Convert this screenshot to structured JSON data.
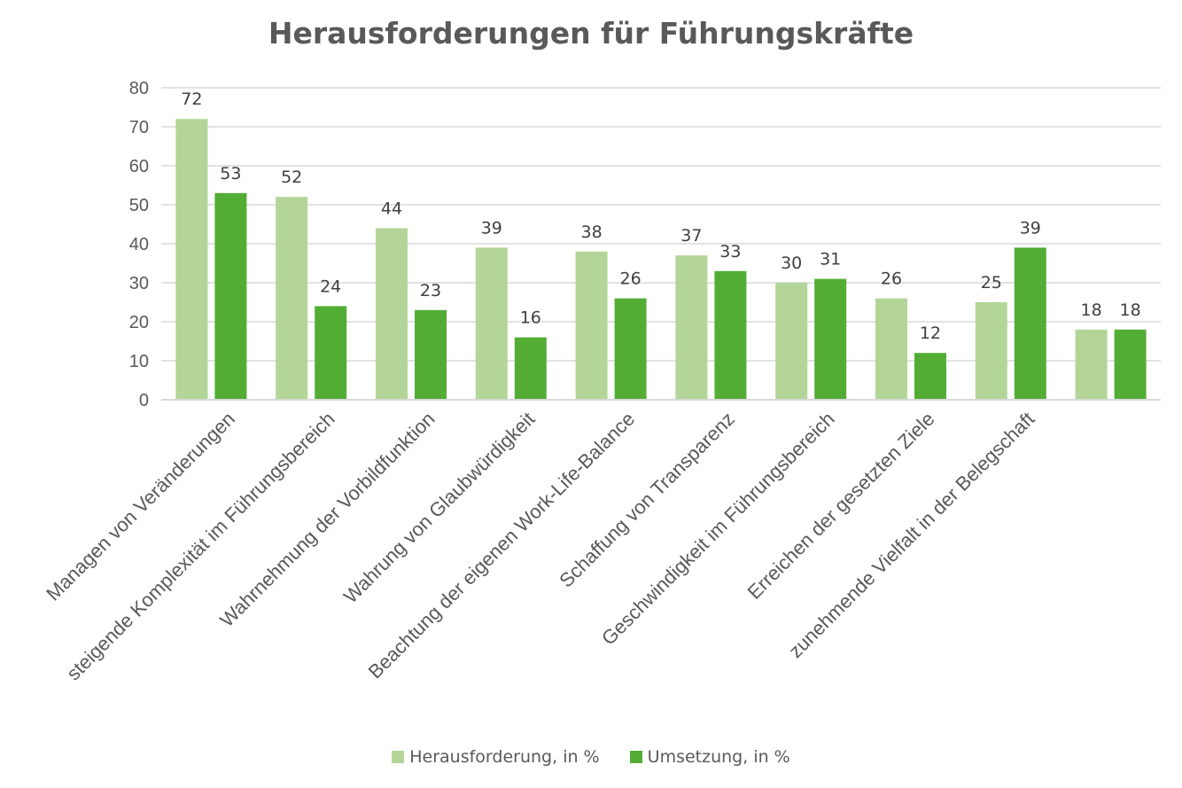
{
  "chart_data": {
    "type": "bar",
    "title": "Herausforderungen für Führungskräfte",
    "xlabel": "",
    "ylabel": "",
    "ylim": [
      0,
      80
    ],
    "yticks": [
      0,
      10,
      20,
      30,
      40,
      50,
      60,
      70,
      80
    ],
    "grid": true,
    "legend_position": "bottom",
    "categories": [
      "Managen von Veränderungen",
      "steigende Komplexität im Führungsbereich",
      "Wahrnehmung der Vorbildfunktion",
      "Wahrung von Glaubwürdigkeit",
      "Beachtung der eigenen Work-Life-Balance",
      "Schaffung von Transparenz",
      "Geschwindigkeit im Führungsbereich",
      "Erreichen der gesetzten Ziele",
      "zunehmende Vielfalt in der Belegschaft",
      ""
    ],
    "series": [
      {
        "name": "Herausforderung, in %",
        "color": "#b3d698",
        "values": [
          72,
          52,
          44,
          39,
          38,
          37,
          30,
          26,
          25,
          18
        ]
      },
      {
        "name": "Umsetzung, in %",
        "color": "#53ad35",
        "values": [
          53,
          24,
          23,
          16,
          26,
          33,
          31,
          12,
          39,
          18
        ]
      }
    ]
  }
}
